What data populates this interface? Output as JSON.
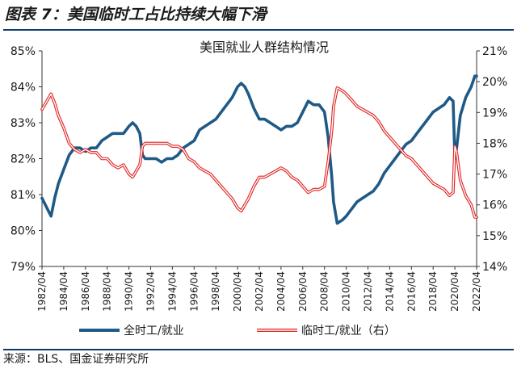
{
  "header": {
    "figure_title": "图表 7：美国临时工占比持续大幅下滑"
  },
  "footer": {
    "source": "来源：BLS、国金证券研究所"
  },
  "chart_data": {
    "type": "line",
    "title": "美国就业人群结构情况",
    "xlabel": "",
    "ylabel": "",
    "x_ticks": [
      "1982/04",
      "1984/04",
      "1986/04",
      "1988/04",
      "1990/04",
      "1992/04",
      "1994/04",
      "1996/04",
      "1998/04",
      "2000/04",
      "2002/04",
      "2004/04",
      "2006/04",
      "2008/04",
      "2010/04",
      "2012/04",
      "2014/04",
      "2016/04",
      "2018/04",
      "2020/04",
      "2022/04"
    ],
    "y_left": {
      "ticks": [
        "79%",
        "80%",
        "81%",
        "82%",
        "83%",
        "84%",
        "85%"
      ],
      "min": 79,
      "max": 85
    },
    "y_right": {
      "ticks": [
        "14%",
        "15%",
        "16%",
        "17%",
        "18%",
        "19%",
        "20%",
        "21%"
      ],
      "min": 14,
      "max": 21
    },
    "grid": false,
    "legend": "bottom",
    "series": [
      {
        "name": "全时工/就业",
        "axis": "left",
        "color": "#1f5a87",
        "points": [
          [
            "1982/04",
            80.9
          ],
          [
            "1982/10",
            80.6
          ],
          [
            "1983/02",
            80.4
          ],
          [
            "1983/06",
            80.9
          ],
          [
            "1983/10",
            81.3
          ],
          [
            "1984/04",
            81.7
          ],
          [
            "1984/10",
            82.1
          ],
          [
            "1985/04",
            82.3
          ],
          [
            "1985/10",
            82.3
          ],
          [
            "1986/04",
            82.2
          ],
          [
            "1986/10",
            82.3
          ],
          [
            "1987/04",
            82.3
          ],
          [
            "1987/10",
            82.5
          ],
          [
            "1988/04",
            82.6
          ],
          [
            "1988/10",
            82.7
          ],
          [
            "1989/04",
            82.7
          ],
          [
            "1989/10",
            82.7
          ],
          [
            "1990/04",
            82.9
          ],
          [
            "1990/08",
            83.0
          ],
          [
            "1990/12",
            82.9
          ],
          [
            "1991/04",
            82.7
          ],
          [
            "1991/07",
            82.1
          ],
          [
            "1991/10",
            82.0
          ],
          [
            "1992/04",
            82.0
          ],
          [
            "1992/10",
            82.0
          ],
          [
            "1993/04",
            81.9
          ],
          [
            "1993/10",
            82.0
          ],
          [
            "1994/04",
            82.0
          ],
          [
            "1994/10",
            82.1
          ],
          [
            "1995/04",
            82.3
          ],
          [
            "1995/10",
            82.4
          ],
          [
            "1996/04",
            82.5
          ],
          [
            "1996/10",
            82.8
          ],
          [
            "1997/04",
            82.9
          ],
          [
            "1997/10",
            83.0
          ],
          [
            "1998/04",
            83.1
          ],
          [
            "1998/10",
            83.3
          ],
          [
            "1999/04",
            83.5
          ],
          [
            "1999/10",
            83.7
          ],
          [
            "2000/04",
            84.0
          ],
          [
            "2000/08",
            84.1
          ],
          [
            "2000/12",
            84.0
          ],
          [
            "2001/04",
            83.8
          ],
          [
            "2001/10",
            83.4
          ],
          [
            "2002/04",
            83.1
          ],
          [
            "2002/10",
            83.1
          ],
          [
            "2003/04",
            83.0
          ],
          [
            "2003/10",
            82.9
          ],
          [
            "2004/04",
            82.8
          ],
          [
            "2004/10",
            82.9
          ],
          [
            "2005/04",
            82.9
          ],
          [
            "2005/10",
            83.0
          ],
          [
            "2006/04",
            83.3
          ],
          [
            "2006/10",
            83.6
          ],
          [
            "2007/04",
            83.5
          ],
          [
            "2007/10",
            83.5
          ],
          [
            "2008/04",
            83.3
          ],
          [
            "2008/08",
            82.6
          ],
          [
            "2008/12",
            81.5
          ],
          [
            "2009/02",
            80.8
          ],
          [
            "2009/06",
            80.2
          ],
          [
            "2009/12",
            80.3
          ],
          [
            "2010/04",
            80.4
          ],
          [
            "2010/10",
            80.6
          ],
          [
            "2011/04",
            80.8
          ],
          [
            "2011/10",
            80.9
          ],
          [
            "2012/04",
            81.0
          ],
          [
            "2012/10",
            81.1
          ],
          [
            "2013/04",
            81.3
          ],
          [
            "2013/10",
            81.6
          ],
          [
            "2014/04",
            81.8
          ],
          [
            "2014/10",
            82.0
          ],
          [
            "2015/04",
            82.2
          ],
          [
            "2015/10",
            82.4
          ],
          [
            "2016/04",
            82.5
          ],
          [
            "2016/10",
            82.7
          ],
          [
            "2017/04",
            82.9
          ],
          [
            "2017/10",
            83.1
          ],
          [
            "2018/04",
            83.3
          ],
          [
            "2018/10",
            83.4
          ],
          [
            "2019/04",
            83.5
          ],
          [
            "2019/10",
            83.7
          ],
          [
            "2020/02",
            83.6
          ],
          [
            "2020/04",
            82.0
          ],
          [
            "2020/06",
            82.3
          ],
          [
            "2020/10",
            83.2
          ],
          [
            "2021/04",
            83.7
          ],
          [
            "2021/10",
            84.0
          ],
          [
            "2022/02",
            84.3
          ],
          [
            "2022/04",
            84.3
          ]
        ]
      },
      {
        "name": "临时工/就业（右）",
        "axis": "right",
        "color": "#e02020",
        "points": [
          [
            "1982/04",
            19.1
          ],
          [
            "1982/10",
            19.4
          ],
          [
            "1983/02",
            19.6
          ],
          [
            "1983/06",
            19.3
          ],
          [
            "1983/10",
            18.9
          ],
          [
            "1984/04",
            18.5
          ],
          [
            "1984/10",
            18.0
          ],
          [
            "1985/04",
            17.8
          ],
          [
            "1985/10",
            17.7
          ],
          [
            "1986/04",
            17.8
          ],
          [
            "1986/10",
            17.7
          ],
          [
            "1987/04",
            17.7
          ],
          [
            "1987/10",
            17.5
          ],
          [
            "1988/04",
            17.5
          ],
          [
            "1988/10",
            17.3
          ],
          [
            "1989/04",
            17.2
          ],
          [
            "1989/10",
            17.3
          ],
          [
            "1990/04",
            17.0
          ],
          [
            "1990/08",
            16.9
          ],
          [
            "1990/12",
            17.1
          ],
          [
            "1991/04",
            17.3
          ],
          [
            "1991/07",
            17.9
          ],
          [
            "1991/10",
            18.0
          ],
          [
            "1992/04",
            18.0
          ],
          [
            "1992/10",
            18.0
          ],
          [
            "1993/04",
            18.0
          ],
          [
            "1993/10",
            18.0
          ],
          [
            "1994/04",
            17.9
          ],
          [
            "1994/10",
            17.9
          ],
          [
            "1995/04",
            17.8
          ],
          [
            "1995/10",
            17.5
          ],
          [
            "1996/04",
            17.4
          ],
          [
            "1996/10",
            17.2
          ],
          [
            "1997/04",
            17.1
          ],
          [
            "1997/10",
            17.0
          ],
          [
            "1998/04",
            16.8
          ],
          [
            "1998/10",
            16.6
          ],
          [
            "1999/04",
            16.4
          ],
          [
            "1999/10",
            16.2
          ],
          [
            "2000/04",
            15.9
          ],
          [
            "2000/08",
            15.8
          ],
          [
            "2000/12",
            16.0
          ],
          [
            "2001/04",
            16.2
          ],
          [
            "2001/10",
            16.6
          ],
          [
            "2002/04",
            16.9
          ],
          [
            "2002/10",
            16.9
          ],
          [
            "2003/04",
            17.0
          ],
          [
            "2003/10",
            17.1
          ],
          [
            "2004/04",
            17.2
          ],
          [
            "2004/10",
            17.1
          ],
          [
            "2005/04",
            16.9
          ],
          [
            "2005/10",
            16.8
          ],
          [
            "2006/04",
            16.6
          ],
          [
            "2006/10",
            16.4
          ],
          [
            "2007/04",
            16.5
          ],
          [
            "2007/10",
            16.5
          ],
          [
            "2008/04",
            16.6
          ],
          [
            "2008/08",
            17.4
          ],
          [
            "2008/12",
            18.4
          ],
          [
            "2009/02",
            19.2
          ],
          [
            "2009/06",
            19.8
          ],
          [
            "2009/12",
            19.7
          ],
          [
            "2010/04",
            19.6
          ],
          [
            "2010/10",
            19.4
          ],
          [
            "2011/04",
            19.2
          ],
          [
            "2011/10",
            19.1
          ],
          [
            "2012/04",
            19.0
          ],
          [
            "2012/10",
            18.9
          ],
          [
            "2013/04",
            18.7
          ],
          [
            "2013/10",
            18.4
          ],
          [
            "2014/04",
            18.2
          ],
          [
            "2014/10",
            18.0
          ],
          [
            "2015/04",
            17.8
          ],
          [
            "2015/10",
            17.6
          ],
          [
            "2016/04",
            17.5
          ],
          [
            "2016/10",
            17.3
          ],
          [
            "2017/04",
            17.1
          ],
          [
            "2017/10",
            16.9
          ],
          [
            "2018/04",
            16.7
          ],
          [
            "2018/10",
            16.6
          ],
          [
            "2019/04",
            16.5
          ],
          [
            "2019/10",
            16.3
          ],
          [
            "2020/02",
            16.4
          ],
          [
            "2020/04",
            17.9
          ],
          [
            "2020/06",
            17.7
          ],
          [
            "2020/10",
            16.8
          ],
          [
            "2021/04",
            16.3
          ],
          [
            "2021/10",
            16.0
          ],
          [
            "2022/02",
            15.6
          ],
          [
            "2022/04",
            15.6
          ]
        ]
      }
    ]
  }
}
